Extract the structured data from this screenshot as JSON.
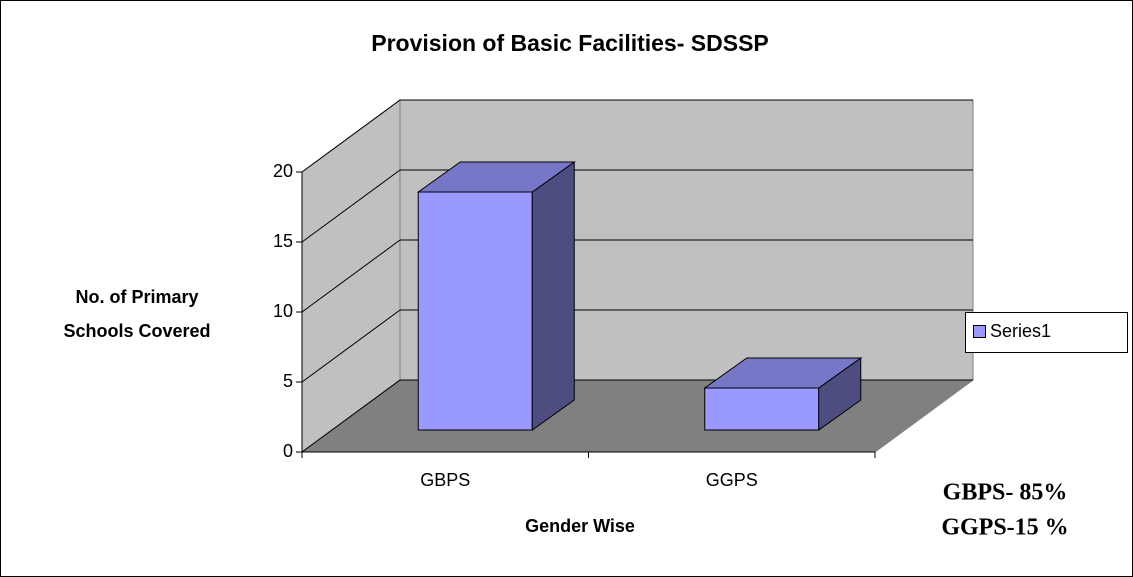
{
  "chart_data": {
    "type": "bar3d",
    "title": "Provision of Basic Facilities- SDSSP",
    "categories": [
      "GBPS",
      "GGPS"
    ],
    "series": [
      {
        "name": "Series1",
        "color": "#9999ff",
        "values": [
          17,
          3
        ]
      }
    ],
    "ylim": [
      0,
      20
    ],
    "yticks": [
      0,
      5,
      10,
      15,
      20
    ],
    "grid": true,
    "xlabel": "Gender Wise",
    "ylabel": [
      "No. of Primary",
      "Schools Covered"
    ],
    "legend": "right",
    "annotations": [
      "GBPS- 85%",
      "GGPS-15 %"
    ]
  }
}
